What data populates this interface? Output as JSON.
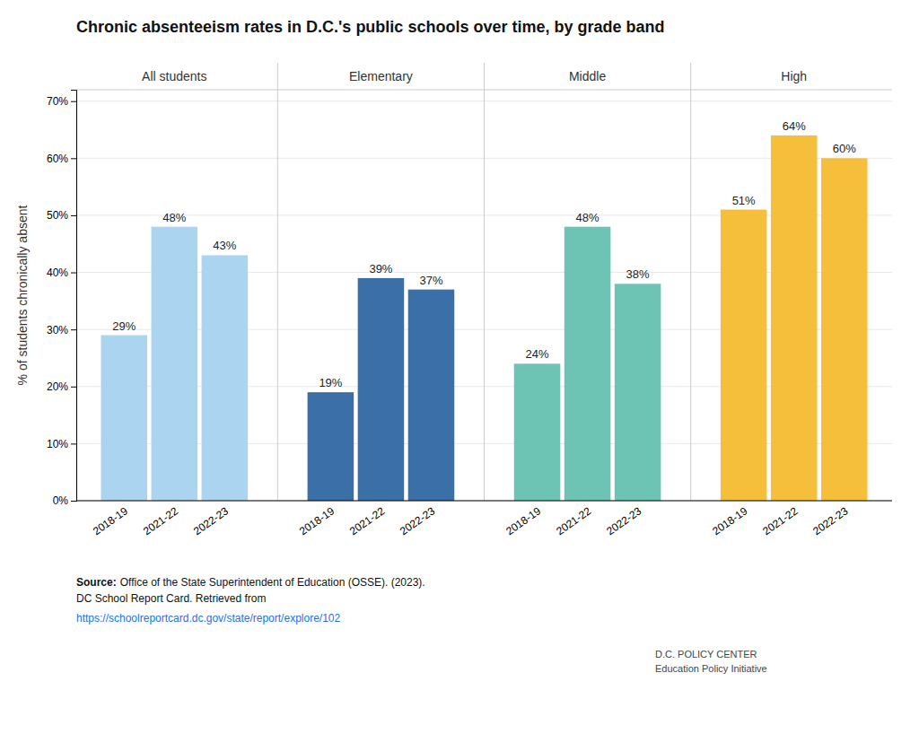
{
  "chart_data": {
    "type": "bar",
    "title": "Chronic absenteeism rates in D.C.'s public schools over time, by grade band",
    "y_label": "% of students chronically absent",
    "categories": [
      "2018-19",
      "2021-22",
      "2022-23"
    ],
    "series": [
      {
        "name": "All students",
        "color": "#aad4f0",
        "values": [
          29,
          48,
          43
        ],
        "value_labels": [
          "29%",
          "48%",
          "43%"
        ]
      },
      {
        "name": "Elementary",
        "color": "#3a6fa8",
        "values": [
          19,
          39,
          37
        ],
        "value_labels": [
          "19%",
          "39%",
          "37%"
        ]
      },
      {
        "name": "Middle",
        "color": "#6dc4b4",
        "values": [
          24,
          48,
          38
        ],
        "value_labels": [
          "24%",
          "48%",
          "38%"
        ]
      },
      {
        "name": "High",
        "color": "#f5be3b",
        "values": [
          51,
          64,
          60
        ],
        "value_labels": [
          "51%",
          "64%",
          "60%"
        ]
      }
    ],
    "ylim": [
      0,
      72
    ],
    "yticks": [
      {
        "value": 0,
        "label": "0%"
      },
      {
        "value": 10,
        "label": "10%"
      },
      {
        "value": 20,
        "label": "20%"
      },
      {
        "value": 30,
        "label": "30%"
      },
      {
        "value": 40,
        "label": "40%"
      },
      {
        "value": 50,
        "label": "50%"
      },
      {
        "value": 60,
        "label": "60%"
      },
      {
        "value": 70,
        "label": "70%"
      }
    ],
    "grid": true,
    "data_labels": true,
    "annotations": [
      "Source:",
      "Office of the State Superintendent of Education (OSSE). (2023).",
      "DC School Report Card. Retrieved from",
      "https://schoolreportcard.dc.gov/state/report/explore/102",
      "D.C. POLICY CENTER",
      "Education Policy Initiative"
    ]
  }
}
